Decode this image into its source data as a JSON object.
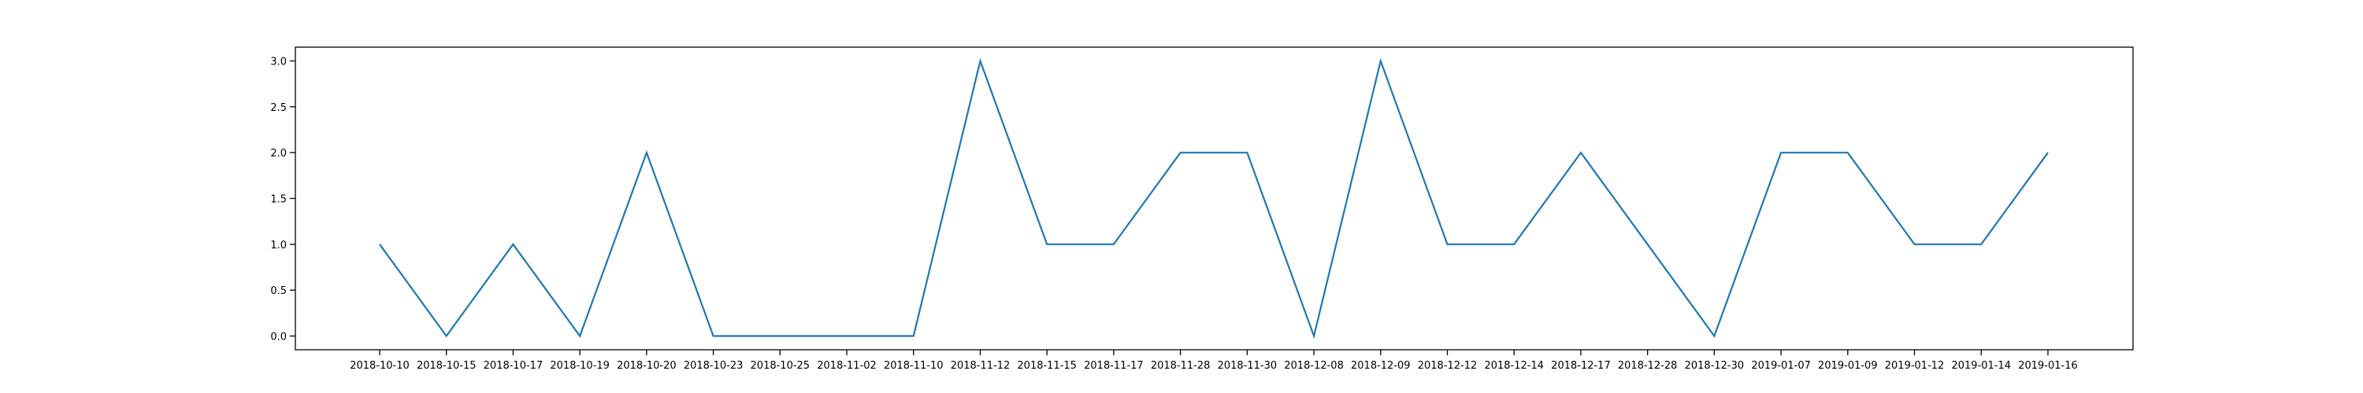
{
  "chart_data": {
    "type": "line",
    "title": "",
    "xlabel": "",
    "ylabel": "",
    "categories": [
      "2018-10-10",
      "2018-10-15",
      "2018-10-17",
      "2018-10-19",
      "2018-10-20",
      "2018-10-23",
      "2018-10-25",
      "2018-11-02",
      "2018-11-10",
      "2018-11-12",
      "2018-11-15",
      "2018-11-17",
      "2018-11-28",
      "2018-11-30",
      "2018-12-08",
      "2018-12-09",
      "2018-12-12",
      "2018-12-14",
      "2018-12-17",
      "2018-12-28",
      "2018-12-30",
      "2019-01-07",
      "2019-01-09",
      "2019-01-12",
      "2019-01-14",
      "2019-01-16"
    ],
    "series": [
      {
        "values": [
          1,
          0,
          1,
          0,
          2,
          0,
          0,
          0,
          0,
          3,
          1,
          1,
          2,
          2,
          0,
          3,
          1,
          1,
          2,
          1,
          0,
          2,
          2,
          1,
          1,
          2
        ]
      }
    ],
    "yticks": [
      "0.0",
      "0.5",
      "1.0",
      "1.5",
      "2.0",
      "2.5",
      "3.0"
    ],
    "ylim": [
      -0.15,
      3.15
    ],
    "grid": false,
    "colors": {
      "line": "#1f77b4",
      "axis": "#000000"
    }
  }
}
